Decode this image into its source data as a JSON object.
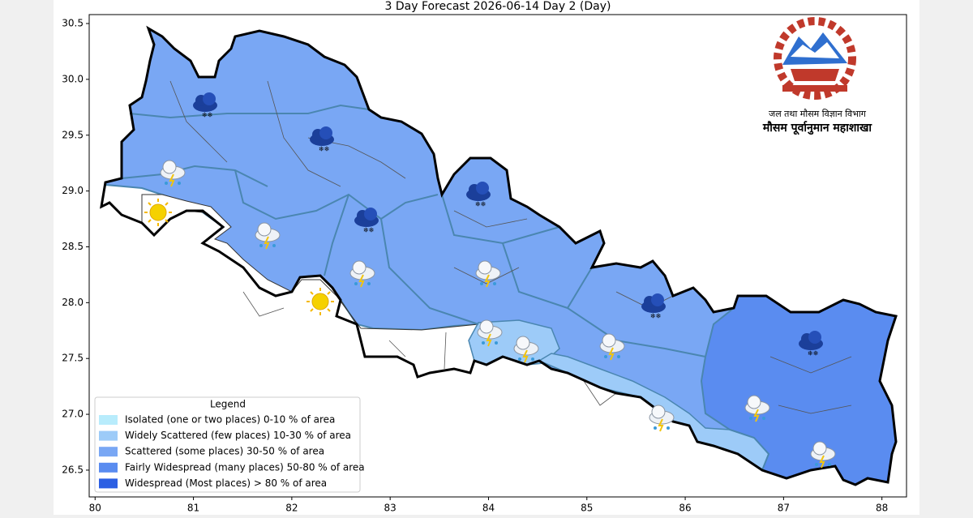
{
  "chart_data": {
    "type": "map",
    "title": "3 Day Forecast 2026-06-14 Day 2 (Day)",
    "xlim": [
      79.94,
      88.25
    ],
    "ylim": [
      26.26,
      30.58
    ],
    "xticks": [
      80,
      81,
      82,
      83,
      84,
      85,
      86,
      87,
      88
    ],
    "yticks": [
      26.5,
      {
        "value": 27,
        "label": "27.0"
      },
      27.5,
      {
        "value": 28,
        "label": "28.0"
      },
      28.5,
      {
        "value": 29,
        "label": "29.0"
      },
      29.5,
      {
        "value": 30,
        "label": "30.0"
      },
      30.5
    ],
    "legend": {
      "title": "Legend",
      "corner": "lower left",
      "items": [
        {
          "label": "Isolated (one or two places)  0-10 % of area",
          "color": "#b8ecfc"
        },
        {
          "label": "Widely Scattered (few places)  10-30 % of area",
          "color": "#9dcbf8"
        },
        {
          "label": "Scattered (some places)  30-50 % of area",
          "color": "#79a7f4"
        },
        {
          "label": "Fairly Widespread (many places)  50-80 % of area",
          "color": "#5a8cf0"
        },
        {
          "label": "Widespread (Most places) > 80 % of area",
          "color": "#2b5fe3"
        }
      ]
    }
  },
  "header": {
    "department": "जल तथा मौसम विज्ञान विभाग",
    "division": "मौसम पूर्वानुमान महाशाखा"
  }
}
